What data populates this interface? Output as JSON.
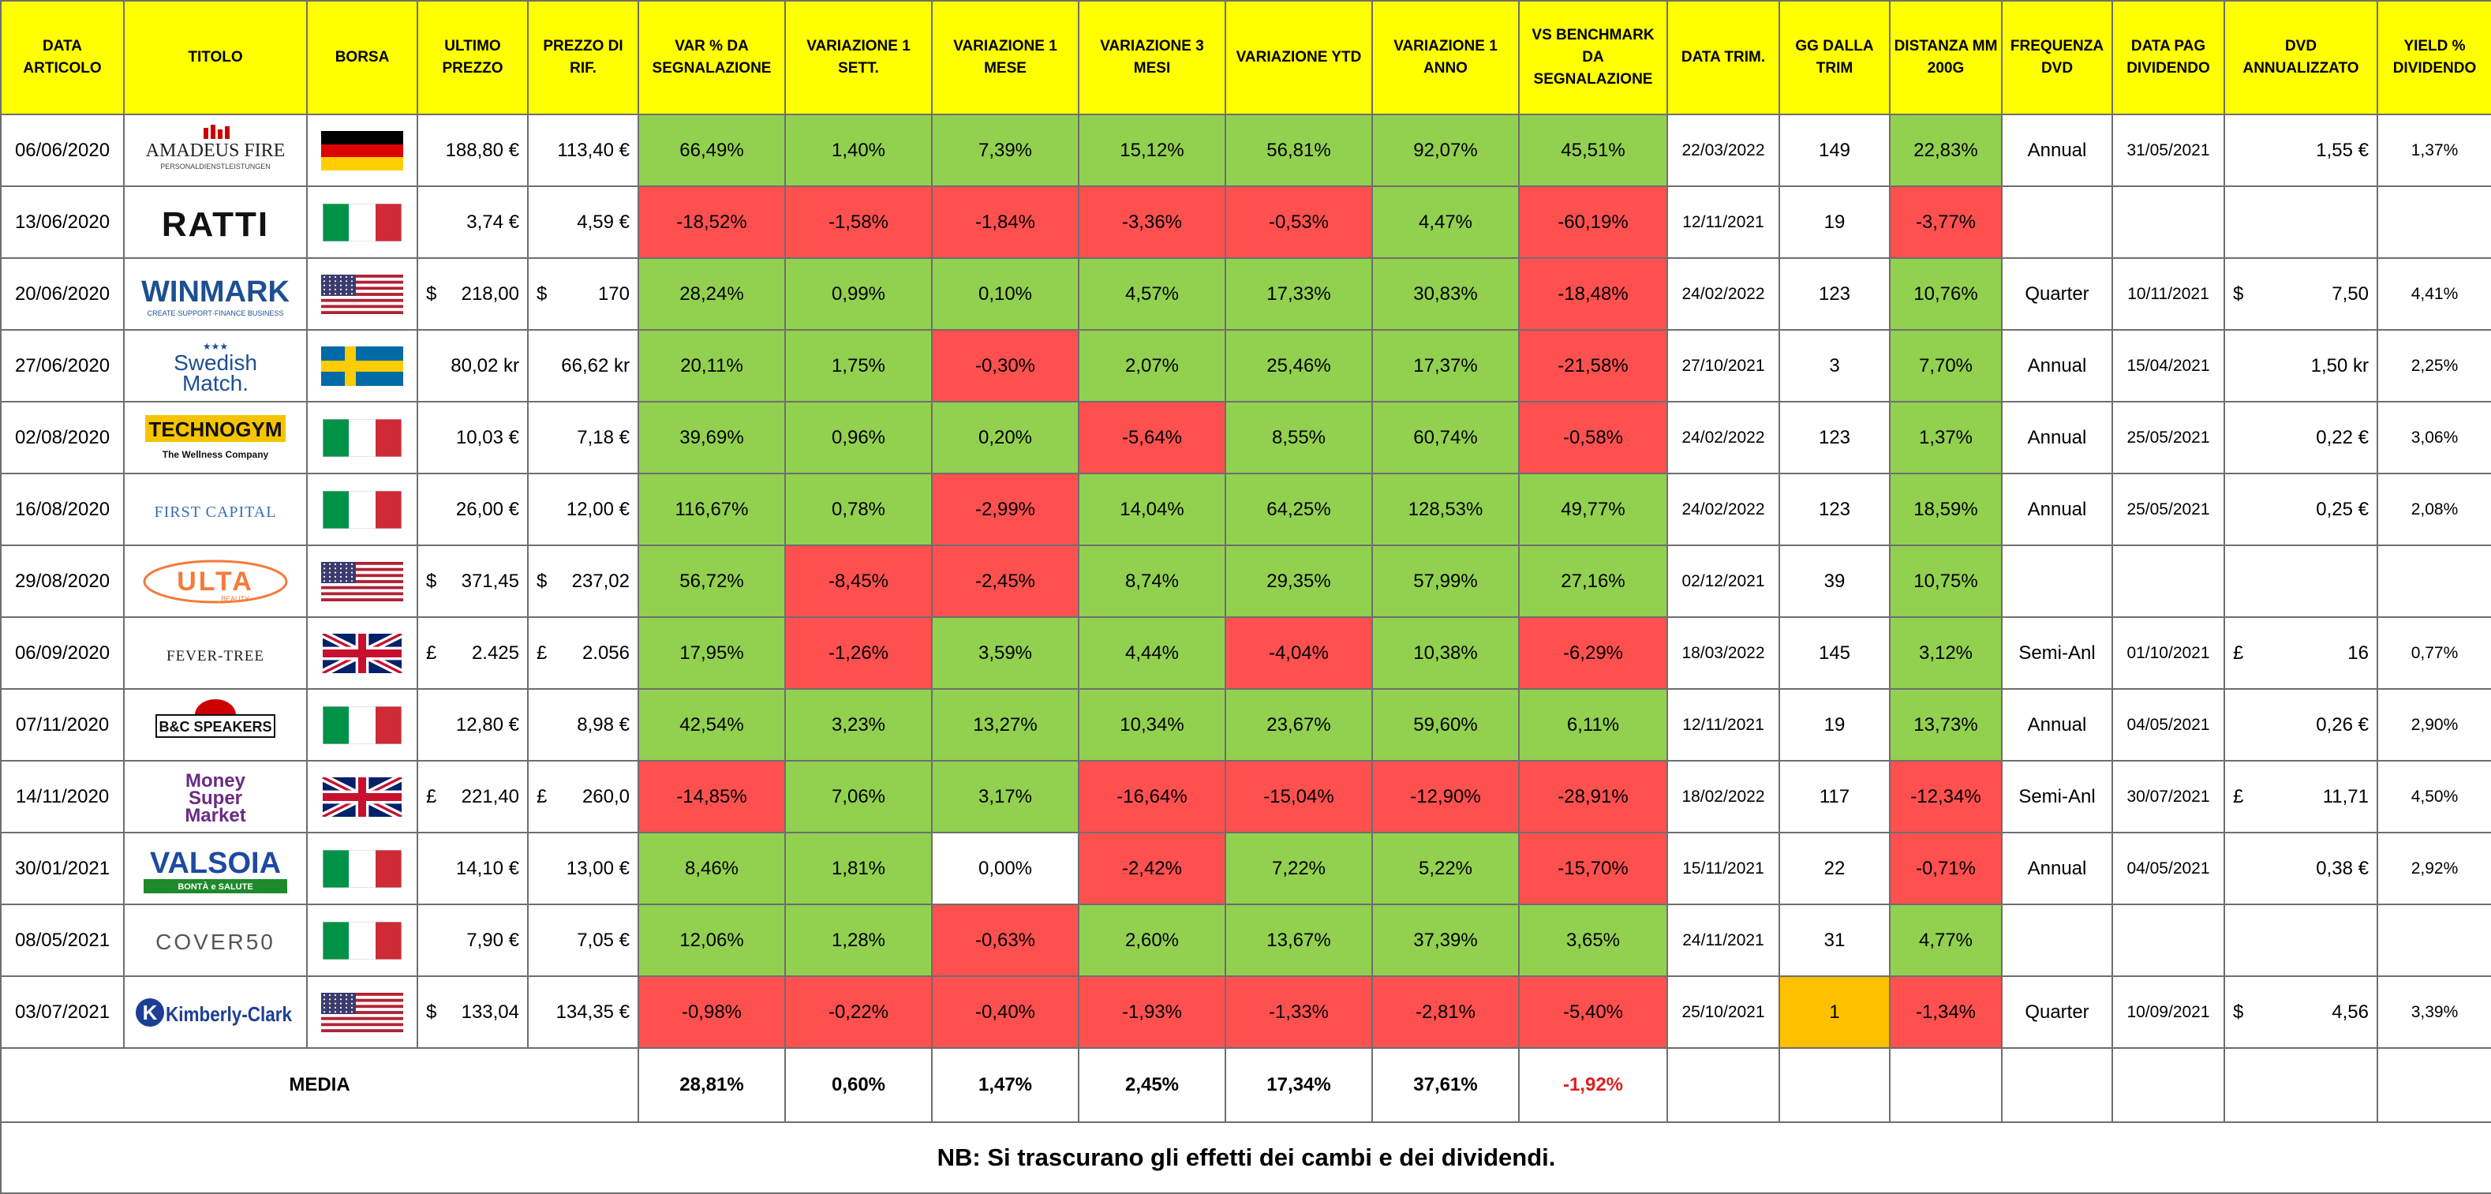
{
  "headers": [
    "DATA ARTICOLO",
    "TITOLO",
    "BORSA",
    "ULTIMO PREZZO",
    "PREZZO DI RIF.",
    "VAR % DA SEGNALAZIONE",
    "VARIAZIONE 1 SETT.",
    "VARIAZIONE 1 MESE",
    "VARIAZIONE 3 MESI",
    "VARIAZIONE YTD",
    "VARIAZIONE 1 ANNO",
    "VS BENCHMARK DA SEGNALAZIONE",
    "DATA TRIM.",
    "GG DALLA TRIM",
    "DISTANZA MM 200G",
    "FREQUENZA DVD",
    "DATA PAG DIVIDENDO",
    "DVD ANNUALIZZATO",
    "YIELD % DIVIDENDO"
  ],
  "rows": [
    {
      "date": "06/06/2020",
      "logo": "AMADEUS FIRE",
      "logo_sub": "PERSONALDIENSTLEISTUNGEN",
      "flag": "de",
      "price_cur": "",
      "price": "188,80 €",
      "ref_cur": "",
      "ref": "113,40 €",
      "var": "66,49%",
      "w1": "1,40%",
      "m1": "7,39%",
      "m3": "15,12%",
      "ytd": "56,81%",
      "y1": "92,07%",
      "bench": "45,51%",
      "trim": "22/03/2022",
      "gg": "149",
      "mm": "22,83%",
      "freq": "Annual",
      "pay": "31/05/2021",
      "dvd_cur": "",
      "dvd": "1,55 €",
      "yield": "1,37%"
    },
    {
      "date": "13/06/2020",
      "logo": "RATTI",
      "logo_sub": "",
      "flag": "it",
      "price_cur": "",
      "price": "3,74 €",
      "ref_cur": "",
      "ref": "4,59 €",
      "var": "-18,52%",
      "w1": "-1,58%",
      "m1": "-1,84%",
      "m3": "-3,36%",
      "ytd": "-0,53%",
      "y1": "4,47%",
      "bench": "-60,19%",
      "trim": "12/11/2021",
      "gg": "19",
      "mm": "-3,77%",
      "freq": "",
      "pay": "",
      "dvd_cur": "",
      "dvd": "",
      "yield": ""
    },
    {
      "date": "20/06/2020",
      "logo": "WINMARK",
      "logo_sub": "CREATE·SUPPORT·FINANCE BUSINESS",
      "flag": "us",
      "price_cur": "$",
      "price": "218,00",
      "ref_cur": "$",
      "ref": "170",
      "var": "28,24%",
      "w1": "0,99%",
      "m1": "0,10%",
      "m3": "4,57%",
      "ytd": "17,33%",
      "y1": "30,83%",
      "bench": "-18,48%",
      "trim": "24/02/2022",
      "gg": "123",
      "mm": "10,76%",
      "freq": "Quarter",
      "pay": "10/11/2021",
      "dvd_cur": "$",
      "dvd": "7,50",
      "yield": "4,41%"
    },
    {
      "date": "27/06/2020",
      "logo": "Swedish",
      "logo_sub": "Match.",
      "flag": "se",
      "price_cur": "",
      "price": "80,02 kr",
      "ref_cur": "",
      "ref": "66,62 kr",
      "var": "20,11%",
      "w1": "1,75%",
      "m1": "-0,30%",
      "m3": "2,07%",
      "ytd": "25,46%",
      "y1": "17,37%",
      "bench": "-21,58%",
      "trim": "27/10/2021",
      "gg": "3",
      "mm": "7,70%",
      "freq": "Annual",
      "pay": "15/04/2021",
      "dvd_cur": "",
      "dvd": "1,50 kr",
      "yield": "2,25%"
    },
    {
      "date": "02/08/2020",
      "logo": "TECHNOGYM",
      "logo_sub": "The Wellness Company",
      "flag": "it",
      "price_cur": "",
      "price": "10,03 €",
      "ref_cur": "",
      "ref": "7,18 €",
      "var": "39,69%",
      "w1": "0,96%",
      "m1": "0,20%",
      "m3": "-5,64%",
      "ytd": "8,55%",
      "y1": "60,74%",
      "bench": "-0,58%",
      "trim": "24/02/2022",
      "gg": "123",
      "mm": "1,37%",
      "freq": "Annual",
      "pay": "25/05/2021",
      "dvd_cur": "",
      "dvd": "0,22 €",
      "yield": "3,06%"
    },
    {
      "date": "16/08/2020",
      "logo": "FIRST CAPITAL",
      "logo_sub": "",
      "flag": "it",
      "price_cur": "",
      "price": "26,00 €",
      "ref_cur": "",
      "ref": "12,00 €",
      "var": "116,67%",
      "w1": "0,78%",
      "m1": "-2,99%",
      "m3": "14,04%",
      "ytd": "64,25%",
      "y1": "128,53%",
      "bench": "49,77%",
      "trim": "24/02/2022",
      "gg": "123",
      "mm": "18,59%",
      "freq": "Annual",
      "pay": "25/05/2021",
      "dvd_cur": "",
      "dvd": "0,25 €",
      "yield": "2,08%"
    },
    {
      "date": "29/08/2020",
      "logo": "ULTA",
      "logo_sub": "BEAUTY",
      "flag": "us",
      "price_cur": "$",
      "price": "371,45",
      "ref_cur": "$",
      "ref": "237,02",
      "var": "56,72%",
      "w1": "-8,45%",
      "m1": "-2,45%",
      "m3": "8,74%",
      "ytd": "29,35%",
      "y1": "57,99%",
      "bench": "27,16%",
      "trim": "02/12/2021",
      "gg": "39",
      "mm": "10,75%",
      "freq": "",
      "pay": "",
      "dvd_cur": "",
      "dvd": "",
      "yield": ""
    },
    {
      "date": "06/09/2020",
      "logo": "FEVER-TREE",
      "logo_sub": "",
      "flag": "uk",
      "price_cur": "£",
      "price": "2.425",
      "ref_cur": "£",
      "ref": "2.056",
      "var": "17,95%",
      "w1": "-1,26%",
      "m1": "3,59%",
      "m3": "4,44%",
      "ytd": "-4,04%",
      "y1": "10,38%",
      "bench": "-6,29%",
      "trim": "18/03/2022",
      "gg": "145",
      "mm": "3,12%",
      "freq": "Semi-Anl",
      "pay": "01/10/2021",
      "dvd_cur": "£",
      "dvd": "16",
      "yield": "0,77%"
    },
    {
      "date": "07/11/2020",
      "logo": "B&C SPEAKERS",
      "logo_sub": "",
      "flag": "it",
      "price_cur": "",
      "price": "12,80 €",
      "ref_cur": "",
      "ref": "8,98 €",
      "var": "42,54%",
      "w1": "3,23%",
      "m1": "13,27%",
      "m3": "10,34%",
      "ytd": "23,67%",
      "y1": "59,60%",
      "bench": "6,11%",
      "trim": "12/11/2021",
      "gg": "19",
      "mm": "13,73%",
      "freq": "Annual",
      "pay": "04/05/2021",
      "dvd_cur": "",
      "dvd": "0,26 €",
      "yield": "2,90%"
    },
    {
      "date": "14/11/2020",
      "logo": "Money Super Market",
      "logo_sub": "",
      "flag": "uk",
      "price_cur": "£",
      "price": "221,40",
      "ref_cur": "£",
      "ref": "260,0",
      "var": "-14,85%",
      "w1": "7,06%",
      "m1": "3,17%",
      "m3": "-16,64%",
      "ytd": "-15,04%",
      "y1": "-12,90%",
      "bench": "-28,91%",
      "trim": "18/02/2022",
      "gg": "117",
      "mm": "-12,34%",
      "freq": "Semi-Anl",
      "pay": "30/07/2021",
      "dvd_cur": "£",
      "dvd": "11,71",
      "yield": "4,50%"
    },
    {
      "date": "30/01/2021",
      "logo": "VALSOIA",
      "logo_sub": "BONTÀ e SALUTE",
      "flag": "it",
      "price_cur": "",
      "price": "14,10 €",
      "ref_cur": "",
      "ref": "13,00 €",
      "var": "8,46%",
      "w1": "1,81%",
      "m1": "0,00%",
      "m3": "-2,42%",
      "ytd": "7,22%",
      "y1": "5,22%",
      "bench": "-15,70%",
      "trim": "15/11/2021",
      "gg": "22",
      "mm": "-0,71%",
      "freq": "Annual",
      "pay": "04/05/2021",
      "dvd_cur": "",
      "dvd": "0,38 €",
      "yield": "2,92%"
    },
    {
      "date": "08/05/2021",
      "logo": "COVER50",
      "logo_sub": "",
      "flag": "it",
      "price_cur": "",
      "price": "7,90 €",
      "ref_cur": "",
      "ref": "7,05 €",
      "var": "12,06%",
      "w1": "1,28%",
      "m1": "-0,63%",
      "m3": "2,60%",
      "ytd": "13,67%",
      "y1": "37,39%",
      "bench": "3,65%",
      "trim": "24/11/2021",
      "gg": "31",
      "mm": "4,77%",
      "freq": "",
      "pay": "",
      "dvd_cur": "",
      "dvd": "",
      "yield": ""
    },
    {
      "date": "03/07/2021",
      "logo": "Kimberly-Clark",
      "logo_sub": "",
      "flag": "us",
      "price_cur": "$",
      "price": "133,04",
      "ref_cur": "",
      "ref": "134,35 €",
      "var": "-0,98%",
      "w1": "-0,22%",
      "m1": "-0,40%",
      "m3": "-1,93%",
      "ytd": "-1,33%",
      "y1": "-2,81%",
      "bench": "-5,40%",
      "trim": "25/10/2021",
      "gg": "1",
      "mm": "-1,34%",
      "freq": "Quarter",
      "pay": "10/09/2021",
      "dvd_cur": "$",
      "dvd": "4,56",
      "yield": "3,39%"
    }
  ],
  "media": {
    "label": "MEDIA",
    "var": "28,81%",
    "w1": "0,60%",
    "m1": "1,47%",
    "m3": "2,45%",
    "ytd": "17,34%",
    "y1": "37,61%",
    "bench": "-1,92%"
  },
  "note": "NB: Si trascurano gli effetti dei cambi e dei dividendi.",
  "colors": {
    "header": "#ffff00",
    "positive": "#92d050",
    "negative": "#ff5050",
    "highlight": "#ffc000"
  }
}
